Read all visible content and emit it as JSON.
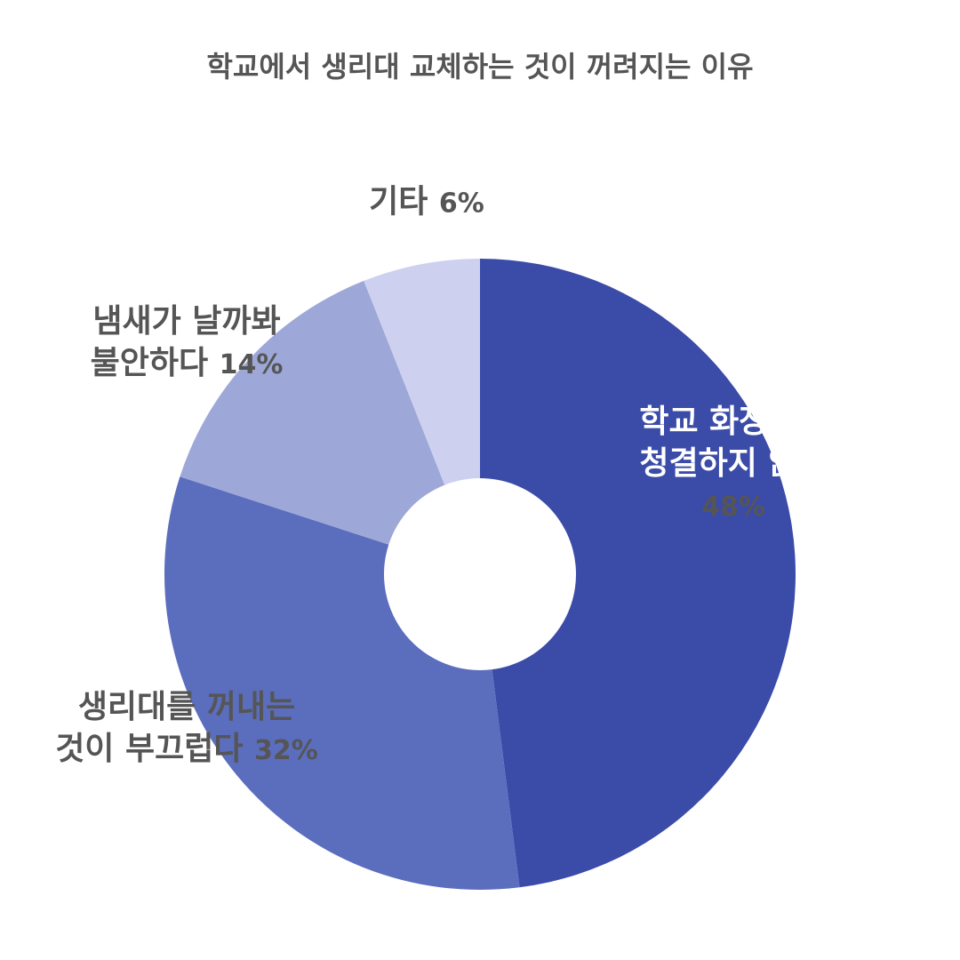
{
  "chart_data": {
    "type": "pie",
    "title": "학교에서 생리대 교체하는 것이 꺼려지는 이유",
    "categories": [
      "학교 화장실이\n청결하지 않다",
      "생리대를 꺼내는\n것이 부끄럽다",
      "냄새가 날까봐\n불안하다",
      "기타"
    ],
    "values": [
      48,
      32,
      14,
      6
    ],
    "value_labels": [
      "48%",
      "32%",
      "14%",
      "6%"
    ],
    "colors": [
      "#3b4ba8",
      "#5b6dbd",
      "#9da8d8",
      "#cdd1ef"
    ]
  }
}
